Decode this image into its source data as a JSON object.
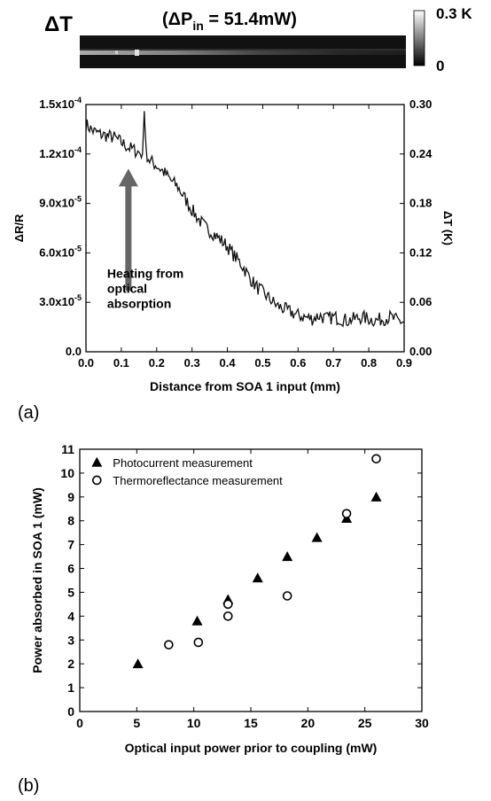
{
  "colors": {
    "axis": "#000000",
    "trace": "#111111",
    "arrow": "#666666",
    "colorbar_top": "#ffffff",
    "colorbar_bottom": "#000000"
  },
  "thermal_image": {
    "title_delta": "ΔT",
    "title_condition_prefix": "(ΔP",
    "title_condition_sub": "in",
    "title_condition_suffix": " = 51.4mW)",
    "colorbar_max": "0.3 K",
    "colorbar_min": "0"
  },
  "chart_data": [
    {
      "type": "line",
      "panel_label": "(a)",
      "xlabel": "Distance from SOA 1 input (mm)",
      "ylabel": "ΔR/R",
      "y2label": "ΔT (K)",
      "xlim": [
        0.0,
        0.9
      ],
      "ylim": [
        0.0,
        0.00015
      ],
      "y2lim": [
        0.0,
        0.3
      ],
      "x_ticks": [
        "0.0",
        "0.1",
        "0.2",
        "0.3",
        "0.4",
        "0.5",
        "0.6",
        "0.7",
        "0.8",
        "0.9"
      ],
      "y_ticks": [
        "0.0",
        "3.0x10",
        "6.0x10",
        "9.0x10",
        "1.2x10",
        "1.5x10"
      ],
      "y_tick_exponent": "-5,-5,-5,-4,-4",
      "y2_ticks": [
        "0.00",
        "0.06",
        "0.12",
        "0.18",
        "0.24",
        "0.30"
      ],
      "annotation": [
        "Heating from",
        "optical",
        "absorption"
      ],
      "series": [
        {
          "x": [
            0.0,
            0.02,
            0.04,
            0.06,
            0.08,
            0.1,
            0.12,
            0.14,
            0.16,
            0.165,
            0.17,
            0.18,
            0.2,
            0.22,
            0.24,
            0.26,
            0.28,
            0.3,
            0.32,
            0.34,
            0.36,
            0.38,
            0.4,
            0.42,
            0.44,
            0.46,
            0.48,
            0.5,
            0.52,
            0.54,
            0.56,
            0.58,
            0.6,
            0.62,
            0.64,
            0.66,
            0.68,
            0.7,
            0.72,
            0.74,
            0.76,
            0.78,
            0.8,
            0.82,
            0.84,
            0.86,
            0.88,
            0.9
          ],
          "y": [
            0.000138,
            0.000134,
            0.000132,
            0.000131,
            0.00013,
            0.000127,
            0.000124,
            0.000122,
            0.00012,
            0.000146,
            0.000121,
            0.000116,
            0.000113,
            0.000109,
            0.000104,
            0.0001,
            9.3e-05,
            8.6e-05,
            8e-05,
            7.5e-05,
            7.2e-05,
            6.8e-05,
            6.4e-05,
            5.8e-05,
            5.3e-05,
            4.6e-05,
            4e-05,
            3.6e-05,
            3.2e-05,
            2.8e-05,
            2.6e-05,
            2.4e-05,
            2.2e-05,
            2.1e-05,
            2e-05,
            2.2e-05,
            2e-05,
            2.1e-05,
            2e-05,
            1.9e-05,
            2e-05,
            2.1e-05,
            2e-05,
            1.9e-05,
            2e-05,
            2.1e-05,
            1.9e-05,
            1.8e-05
          ]
        }
      ]
    },
    {
      "type": "scatter",
      "panel_label": "(b)",
      "xlabel": "Optical input power prior to coupling (mW)",
      "ylabel": "Power absorbed in SOA 1 (mW)",
      "xlim": [
        0,
        30
      ],
      "ylim": [
        0,
        11
      ],
      "x_ticks": [
        "0",
        "5",
        "10",
        "15",
        "20",
        "25",
        "30"
      ],
      "y_ticks": [
        "0",
        "1",
        "2",
        "3",
        "4",
        "5",
        "6",
        "7",
        "8",
        "9",
        "10",
        "11"
      ],
      "legend_position": "top-left",
      "series": [
        {
          "name": "Photocurrent measurement",
          "marker": "filled-triangle",
          "x": [
            5.1,
            10.3,
            13.0,
            15.6,
            18.2,
            20.8,
            23.4,
            26.0
          ],
          "y": [
            2.0,
            3.8,
            4.7,
            5.6,
            6.5,
            7.3,
            8.1,
            9.0
          ]
        },
        {
          "name": "Thermoreflectance measurement",
          "marker": "open-circle",
          "x": [
            7.8,
            10.4,
            13.0,
            13.0,
            18.2,
            23.4,
            26.0
          ],
          "y": [
            2.8,
            2.9,
            4.0,
            4.5,
            4.85,
            8.3,
            10.6
          ]
        }
      ]
    }
  ]
}
